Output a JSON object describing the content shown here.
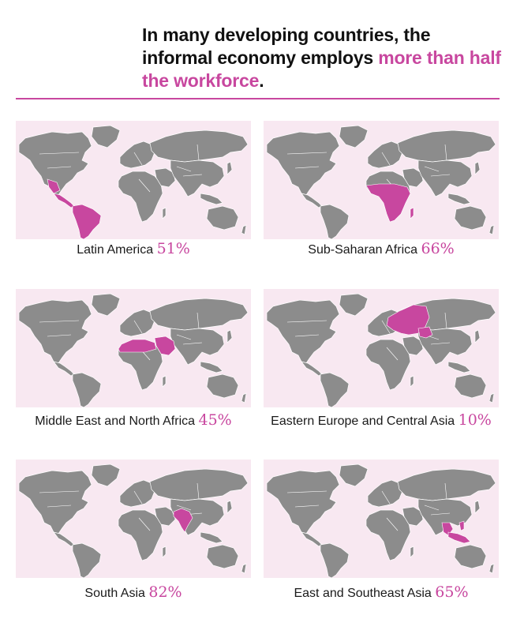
{
  "title": {
    "part1": "In many developing countries, the informal economy employs ",
    "highlight": "more than half the workforce",
    "end": "."
  },
  "colors": {
    "accent": "#c8479f",
    "land": "#8c8c8c",
    "panel_bg": "#f8e8f1"
  },
  "maps": [
    {
      "id": "latam",
      "region": "Latin America",
      "percent": "51%"
    },
    {
      "id": "ssa",
      "region": "Sub-Saharan Africa",
      "percent": "66%"
    },
    {
      "id": "mena",
      "region": "Middle East and North Africa",
      "percent": "45%"
    },
    {
      "id": "eeca",
      "region": "Eastern Europe and Central Asia",
      "percent": "10%"
    },
    {
      "id": "sa",
      "region": "South Asia",
      "percent": "82%"
    },
    {
      "id": "eap",
      "region": "East and Southeast Asia",
      "percent": "65%"
    }
  ]
}
